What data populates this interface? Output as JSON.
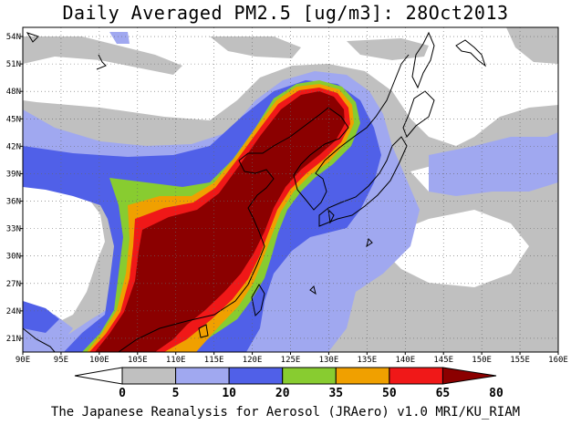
{
  "title": "Daily Averaged PM2.5 [ug/m3]: 28Oct2013",
  "credit": "The Japanese Reanalysis for Aerosol (JRAero) v1.0 MRI/KU_RIAM",
  "map": {
    "lon_range": [
      90,
      160
    ],
    "lat_range": [
      19.5,
      55
    ],
    "lon_ticks": [
      "90E",
      "95E",
      "100E",
      "105E",
      "110E",
      "115E",
      "120E",
      "125E",
      "130E",
      "135E",
      "140E",
      "145E",
      "150E",
      "155E",
      "160E"
    ],
    "lat_ticks": [
      "21N",
      "24N",
      "27N",
      "30N",
      "33N",
      "36N",
      "39N",
      "42N",
      "45N",
      "48N",
      "51N",
      "54N"
    ],
    "grid": "dotted",
    "field": "PM2.5 daily average"
  },
  "colorbar": {
    "thresholds": [
      "0",
      "5",
      "10",
      "20",
      "35",
      "50",
      "65",
      "80"
    ],
    "colors": [
      "#ffffff",
      "#c0c0c0",
      "#a0a8f0",
      "#5060e8",
      "#88cc30",
      "#f0a000",
      "#f01818",
      "#8b0000"
    ]
  }
}
